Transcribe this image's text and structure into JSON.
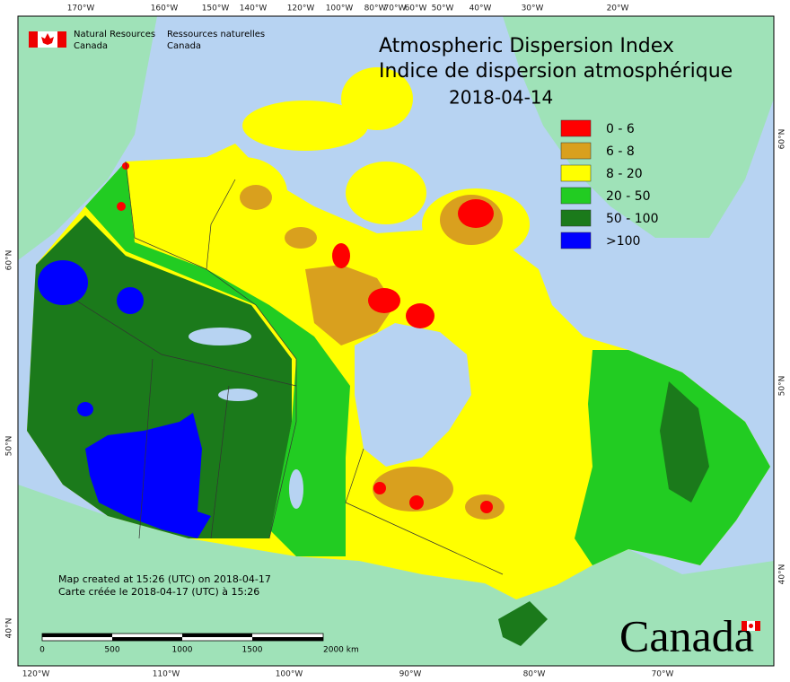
{
  "header": {
    "agency_en": [
      "Natural Resources",
      "Canada"
    ],
    "agency_fr": [
      "Ressources naturelles",
      "Canada"
    ]
  },
  "title": [
    "Atmospheric Dispersion Index",
    "Indice de dispersion atmosphérique"
  ],
  "date": "2018-04-14",
  "legend": [
    {
      "label": "0 - 6",
      "color": "#ff0000"
    },
    {
      "label": "6 - 8",
      "color": "#d9a01e"
    },
    {
      "label": "8 - 20",
      "color": "#ffff00"
    },
    {
      "label": "20 - 50",
      "color": "#22cc22"
    },
    {
      "label": "50 - 100",
      "color": "#1b7a1b"
    },
    {
      "label": ">100",
      "color": "#0000ff"
    }
  ],
  "graticule": {
    "top": [
      "170°W",
      "160°W",
      "150°W",
      "140°W",
      "120°W",
      "100°W",
      "80°W",
      "70°W",
      "60°W",
      "50°W",
      "40°W",
      "30°W",
      "20°W"
    ],
    "bottom": [
      "120°W",
      "110°W",
      "100°W",
      "90°W",
      "80°W",
      "70°W"
    ],
    "left": [
      "60°N",
      "50°N",
      "40°N"
    ],
    "right": [
      "60°N",
      "50°N",
      "40°N"
    ]
  },
  "notes": [
    "Map created at 15:26 (UTC) on 2018-04-17",
    "Carte créée le 2018-04-17 (UTC) à 15:26"
  ],
  "scale_bar": {
    "labels": [
      "0",
      "500",
      "1000",
      "1500",
      "2000  km"
    ]
  },
  "wordmark": "Canada"
}
